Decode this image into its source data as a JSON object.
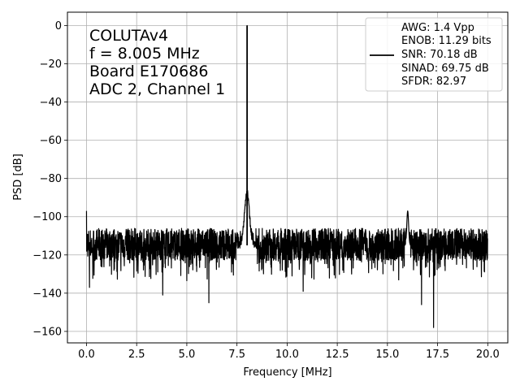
{
  "chart_data": {
    "type": "line",
    "title": "",
    "xlabel": "Frequency [MHz]",
    "ylabel": "PSD [dB]",
    "xlim": [
      -0.95,
      21.0
    ],
    "ylim": [
      -166,
      7
    ],
    "xticks": [
      0.0,
      2.5,
      5.0,
      7.5,
      10.0,
      12.5,
      15.0,
      17.5,
      20.0
    ],
    "xtick_labels": [
      "0.0",
      "2.5",
      "5.0",
      "7.5",
      "10.0",
      "12.5",
      "15.0",
      "17.5",
      "20.0"
    ],
    "yticks": [
      0,
      -20,
      -40,
      -60,
      -80,
      -100,
      -120,
      -140,
      -160
    ],
    "ytick_labels": [
      "0",
      "−20",
      "−40",
      "−60",
      "−80",
      "−100",
      "−120",
      "−140",
      "−160"
    ],
    "grid": true,
    "line_color": "#000000",
    "annotation_lines": [
      "COLUTAv4",
      "f = 8.005 MHz",
      "Board E170686",
      "ADC 2, Channel 1"
    ],
    "legend": {
      "placement": "top-right",
      "entries": [
        "AWG: 1.4 Vpp",
        "ENOB: 11.29 bits",
        "SNR: 70.18 dB",
        "SINAD: 69.75 dB",
        "SFDR: 82.97"
      ]
    },
    "series": [
      {
        "noise_floor_mean_db": -115,
        "noise_band_db": [
          -125,
          -104
        ],
        "features": [
          {
            "kind": "fundamental",
            "x": 8.005,
            "y": 0
          },
          {
            "kind": "skirt",
            "x": 8.0,
            "y": -87
          },
          {
            "kind": "spur",
            "x": 16.01,
            "y": -97
          },
          {
            "kind": "spike",
            "x": 0.0,
            "y": -97
          },
          {
            "kind": "dip",
            "x": 17.3,
            "y": -158
          },
          {
            "kind": "dip",
            "x": 16.7,
            "y": -146
          },
          {
            "kind": "dip",
            "x": 6.1,
            "y": -145
          },
          {
            "kind": "dip",
            "x": 3.8,
            "y": -141
          },
          {
            "kind": "dip",
            "x": 10.8,
            "y": -139
          },
          {
            "kind": "dip",
            "x": 0.15,
            "y": -137
          }
        ]
      }
    ]
  }
}
